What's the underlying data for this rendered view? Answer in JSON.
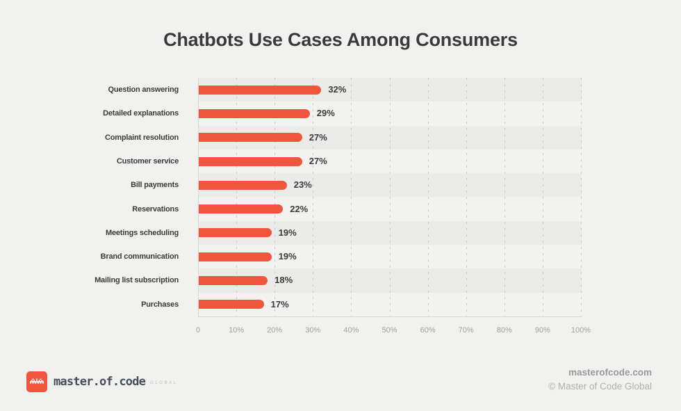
{
  "title": "Chatbots Use Cases Among Consumers",
  "chart_data": {
    "type": "bar",
    "orientation": "horizontal",
    "title": "Chatbots Use Cases Among Consumers",
    "categories": [
      "Question answering",
      "Detailed explanations",
      "Complaint resolution",
      "Customer service",
      "Bill payments",
      "Reservations",
      "Meetings scheduling",
      "Brand communication",
      "Mailing list subscription",
      "Purchases"
    ],
    "values": [
      32,
      29,
      27,
      27,
      23,
      22,
      19,
      19,
      18,
      17
    ],
    "value_labels": [
      "32%",
      "29%",
      "27%",
      "27%",
      "23%",
      "22%",
      "19%",
      "19%",
      "18%",
      "17%"
    ],
    "x_ticks": [
      "0",
      "10%",
      "20%",
      "30%",
      "40%",
      "50%",
      "60%",
      "70%",
      "80%",
      "90%",
      "100%"
    ],
    "xlim": [
      0,
      100
    ],
    "grid": "vertical-dashed",
    "legend": "none",
    "bar_color": "#F0563D"
  },
  "footer": {
    "logo": {
      "icon": "pixel-crown-logo-icon",
      "text": "master.of.code",
      "suffix": "GLOBAL"
    },
    "website": "masterofcode.com",
    "copyright": "© Master of Code Global"
  },
  "colors": {
    "background": "#F1F1F0",
    "stripe_dark": "#EBEBEA",
    "stripe_light": "#F2F2F1",
    "bar": "#F0563D",
    "axis_line": "#DADADA",
    "gridline": "#C9C9C9",
    "title_text": "#3A3A3A",
    "label_text": "#3B3B3B",
    "tick_text": "#A1A1A1",
    "footer_text": "#9A9A9A"
  }
}
